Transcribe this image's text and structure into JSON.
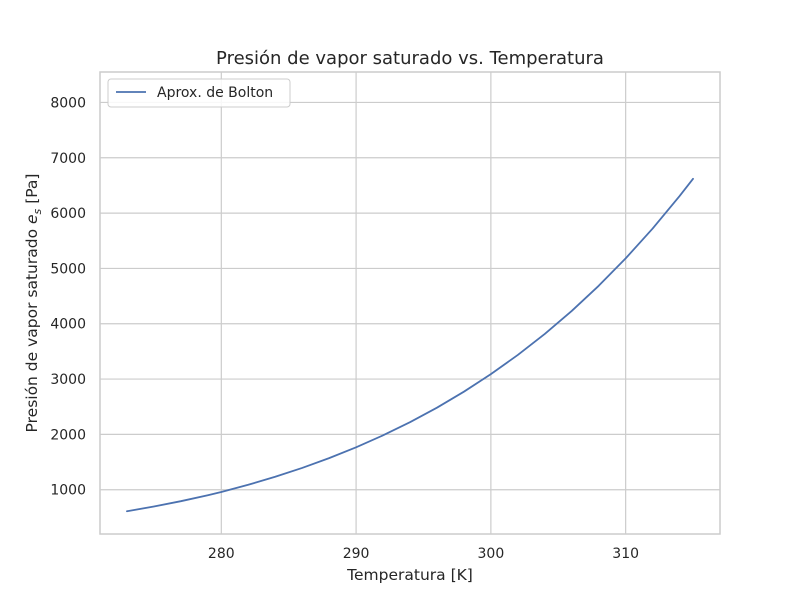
{
  "chart_data": {
    "type": "line",
    "title": "Presión de vapor saturado vs. Temperatura",
    "xlabel": "Temperatura [K]",
    "ylabel_prefix": "Presión de vapor saturado ",
    "ylabel_symbol": "e",
    "ylabel_subscript": "s",
    "ylabel_suffix": " [Pa]",
    "xlim": [
      271,
      317
    ],
    "ylim": [
      200,
      8550
    ],
    "x_ticks": [
      280,
      290,
      300,
      310
    ],
    "y_ticks": [
      1000,
      2000,
      3000,
      4000,
      5000,
      6000,
      7000,
      8000
    ],
    "grid": true,
    "legend_position": "upper-left",
    "series": [
      {
        "name": "Aprox. de Bolton",
        "color": "#4c72b0",
        "x": [
          273,
          275,
          277,
          279,
          280,
          282,
          284,
          286,
          288,
          290,
          292,
          294,
          296,
          298,
          300,
          302,
          304,
          306,
          308,
          310,
          312,
          314,
          315
        ],
        "values": [
          611,
          697,
          793,
          901,
          960,
          1090,
          1234,
          1394,
          1571,
          1767,
          1983,
          2221,
          2483,
          2772,
          3089,
          3436,
          3816,
          4232,
          4686,
          5181,
          5720,
          6307,
          6620
        ]
      }
    ]
  }
}
